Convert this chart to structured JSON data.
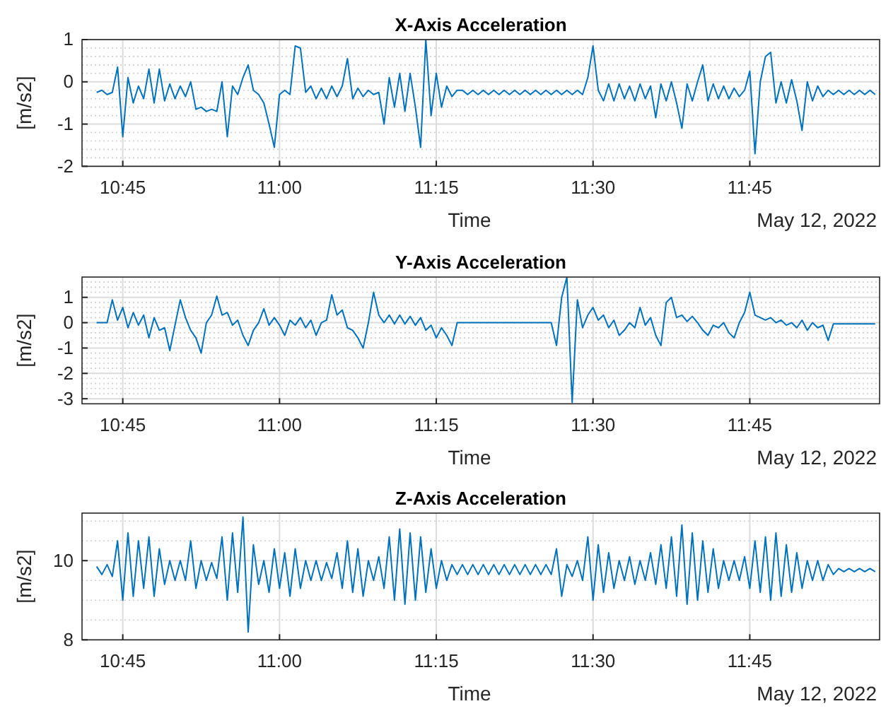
{
  "chart_data": [
    {
      "type": "line",
      "title": "X-Axis Acceleration",
      "xlabel": "Time",
      "ylabel": "[m/s2]",
      "annotations": [
        "May 12, 2022"
      ],
      "grid": true,
      "xlim": [
        10.685,
        11.957
      ],
      "xticks": [
        {
          "value": 10.75,
          "label": "10:45"
        },
        {
          "value": 11,
          "label": "11:00"
        },
        {
          "value": 11.25,
          "label": "11:15"
        },
        {
          "value": 11.5,
          "label": "11:30"
        },
        {
          "value": 11.75,
          "label": "11:45"
        }
      ],
      "ylim": [
        -2,
        1
      ],
      "yticks": [
        -2,
        {
          "value": -1.8,
          "label": null
        },
        {
          "value": -1.6,
          "label": null
        },
        {
          "value": -1.4,
          "label": null
        },
        {
          "value": -1.2,
          "label": null
        },
        -1,
        {
          "value": -0.8,
          "label": null
        },
        {
          "value": -0.6,
          "label": null
        },
        {
          "value": -0.4,
          "label": null
        },
        {
          "value": -0.2,
          "label": null
        },
        0,
        {
          "value": 0.2,
          "label": null
        },
        {
          "value": 0.4,
          "label": null
        },
        {
          "value": 0.6,
          "label": null
        },
        {
          "value": 0.8,
          "label": null
        },
        1
      ],
      "x": [
        10.7083,
        10.7167,
        10.725,
        10.7333,
        10.7417,
        10.75,
        10.7583,
        10.7667,
        10.775,
        10.7833,
        10.7917,
        10.8,
        10.8083,
        10.8167,
        10.825,
        10.8333,
        10.8417,
        10.85,
        10.8583,
        10.8667,
        10.875,
        10.8833,
        10.8917,
        10.9,
        10.9083,
        10.9167,
        10.925,
        10.9333,
        10.9417,
        10.95,
        10.9583,
        10.9667,
        10.975,
        10.9833,
        10.9917,
        11.0,
        11.0083,
        11.0167,
        11.025,
        11.0333,
        11.0417,
        11.05,
        11.0583,
        11.0667,
        11.075,
        11.0833,
        11.0917,
        11.1,
        11.1083,
        11.1167,
        11.125,
        11.1333,
        11.1417,
        11.15,
        11.1583,
        11.1667,
        11.175,
        11.1833,
        11.1917,
        11.2,
        11.2083,
        11.2167,
        11.225,
        11.2333,
        11.2417,
        11.25,
        11.2583,
        11.2667,
        11.275,
        11.2833,
        11.2917,
        11.3,
        11.3083,
        11.3167,
        11.325,
        11.3333,
        11.3417,
        11.35,
        11.3583,
        11.3667,
        11.375,
        11.3833,
        11.3917,
        11.4,
        11.4083,
        11.4167,
        11.425,
        11.4333,
        11.4417,
        11.45,
        11.4583,
        11.4667,
        11.475,
        11.4833,
        11.4917,
        11.5,
        11.5083,
        11.5167,
        11.525,
        11.5333,
        11.5417,
        11.55,
        11.5583,
        11.5667,
        11.575,
        11.5833,
        11.5917,
        11.6,
        11.6083,
        11.6167,
        11.625,
        11.6333,
        11.6417,
        11.65,
        11.6583,
        11.6667,
        11.675,
        11.6833,
        11.6917,
        11.7,
        11.7083,
        11.7167,
        11.725,
        11.7333,
        11.7417,
        11.75,
        11.7583,
        11.7667,
        11.775,
        11.7833,
        11.7917,
        11.8,
        11.8083,
        11.8167,
        11.825,
        11.8333,
        11.8417,
        11.85,
        11.8583,
        11.8667,
        11.875,
        11.8833,
        11.8917,
        11.9,
        11.9083,
        11.9167,
        11.925,
        11.9333,
        11.9417,
        11.95
      ],
      "series": [
        {
          "color": "#0072bd",
          "values": [
            -0.25,
            -0.2,
            -0.3,
            -0.25,
            0.35,
            -1.3,
            0.1,
            -0.5,
            -0.1,
            -0.4,
            0.3,
            -0.5,
            0.3,
            -0.45,
            -0.05,
            -0.4,
            -0.1,
            -0.35,
            0.0,
            -0.65,
            -0.6,
            -0.7,
            -0.65,
            -0.7,
            0.0,
            -1.3,
            -0.1,
            -0.3,
            0.1,
            0.4,
            -0.2,
            -0.3,
            -0.5,
            -1.0,
            -1.55,
            -0.3,
            -0.2,
            -0.3,
            0.85,
            0.8,
            -0.25,
            -0.1,
            -0.4,
            -0.15,
            -0.4,
            -0.1,
            -0.35,
            -0.1,
            0.55,
            -0.4,
            -0.15,
            -0.35,
            -0.2,
            -0.3,
            -0.25,
            -1.0,
            0.1,
            -0.6,
            0.2,
            -0.7,
            0.2,
            -0.6,
            -1.55,
            1.0,
            -0.8,
            0.2,
            -0.6,
            -0.1,
            -0.35,
            -0.2,
            -0.2,
            -0.3,
            -0.2,
            -0.3,
            -0.2,
            -0.3,
            -0.2,
            -0.3,
            -0.2,
            -0.3,
            -0.2,
            -0.3,
            -0.2,
            -0.3,
            -0.2,
            -0.3,
            -0.2,
            -0.3,
            -0.2,
            -0.3,
            -0.2,
            -0.3,
            -0.2,
            -0.3,
            0.1,
            0.85,
            -0.2,
            -0.45,
            -0.05,
            -0.45,
            -0.05,
            -0.4,
            -0.1,
            -0.45,
            -0.05,
            -0.4,
            -0.1,
            -0.85,
            -0.05,
            -0.45,
            0.0,
            -0.5,
            -1.1,
            -0.05,
            -0.45,
            0.0,
            0.4,
            -0.45,
            -0.05,
            -0.4,
            -0.1,
            -0.4,
            -0.15,
            -0.35,
            -0.2,
            0.25,
            -1.7,
            0.0,
            0.6,
            0.7,
            -0.5,
            0.0,
            -0.5,
            0.05,
            -0.45,
            -1.15,
            0.0,
            -0.45,
            -0.1,
            -0.35,
            -0.2,
            -0.3,
            -0.2,
            -0.3,
            -0.2,
            -0.3,
            -0.2,
            -0.3,
            -0.2,
            -0.3
          ]
        }
      ]
    },
    {
      "type": "line",
      "title": "Y-Axis Acceleration",
      "xlabel": "Time",
      "ylabel": "[m/s2]",
      "annotations": [
        "May 12, 2022"
      ],
      "grid": true,
      "xlim": [
        10.685,
        11.957
      ],
      "xticks": [
        {
          "value": 10.75,
          "label": "10:45"
        },
        {
          "value": 11,
          "label": "11:00"
        },
        {
          "value": 11.25,
          "label": "11:15"
        },
        {
          "value": 11.5,
          "label": "11:30"
        },
        {
          "value": 11.75,
          "label": "11:45"
        }
      ],
      "ylim": [
        -3.2,
        1.8
      ],
      "yticks": [
        -3,
        {
          "value": -2.8,
          "label": null
        },
        {
          "value": -2.6,
          "label": null
        },
        {
          "value": -2.4,
          "label": null
        },
        {
          "value": -2.2,
          "label": null
        },
        -2,
        {
          "value": -1.8,
          "label": null
        },
        {
          "value": -1.6,
          "label": null
        },
        {
          "value": -1.4,
          "label": null
        },
        {
          "value": -1.2,
          "label": null
        },
        -1,
        {
          "value": -0.8,
          "label": null
        },
        {
          "value": -0.6,
          "label": null
        },
        {
          "value": -0.4,
          "label": null
        },
        {
          "value": -0.2,
          "label": null
        },
        0,
        {
          "value": 0.2,
          "label": null
        },
        {
          "value": 0.4,
          "label": null
        },
        {
          "value": 0.6,
          "label": null
        },
        {
          "value": 0.8,
          "label": null
        },
        1,
        {
          "value": 1.2,
          "label": null
        },
        {
          "value": 1.4,
          "label": null
        },
        {
          "value": 1.6,
          "label": null
        }
      ],
      "x": [
        10.7083,
        10.7167,
        10.725,
        10.7333,
        10.7417,
        10.75,
        10.7583,
        10.7667,
        10.775,
        10.7833,
        10.7917,
        10.8,
        10.8083,
        10.8167,
        10.825,
        10.8333,
        10.8417,
        10.85,
        10.8583,
        10.8667,
        10.875,
        10.8833,
        10.8917,
        10.9,
        10.9083,
        10.9167,
        10.925,
        10.9333,
        10.9417,
        10.95,
        10.9583,
        10.9667,
        10.975,
        10.9833,
        10.9917,
        11.0,
        11.0083,
        11.0167,
        11.025,
        11.0333,
        11.0417,
        11.05,
        11.0583,
        11.0667,
        11.075,
        11.0833,
        11.0917,
        11.1,
        11.1083,
        11.1167,
        11.125,
        11.1333,
        11.1417,
        11.15,
        11.1583,
        11.1667,
        11.175,
        11.1833,
        11.1917,
        11.2,
        11.2083,
        11.2167,
        11.225,
        11.2333,
        11.2417,
        11.25,
        11.2583,
        11.2667,
        11.275,
        11.2833,
        11.2917,
        11.3,
        11.3083,
        11.3167,
        11.325,
        11.3333,
        11.3417,
        11.35,
        11.3583,
        11.3667,
        11.375,
        11.3833,
        11.3917,
        11.4,
        11.4083,
        11.4167,
        11.425,
        11.4333,
        11.4417,
        11.45,
        11.4583,
        11.4667,
        11.475,
        11.4833,
        11.4917,
        11.5,
        11.5083,
        11.5167,
        11.525,
        11.5333,
        11.5417,
        11.55,
        11.5583,
        11.5667,
        11.575,
        11.5833,
        11.5917,
        11.6,
        11.6083,
        11.6167,
        11.625,
        11.6333,
        11.6417,
        11.65,
        11.6583,
        11.6667,
        11.675,
        11.6833,
        11.6917,
        11.7,
        11.7083,
        11.7167,
        11.725,
        11.7333,
        11.7417,
        11.75,
        11.7583,
        11.7667,
        11.775,
        11.7833,
        11.7917,
        11.8,
        11.8083,
        11.8167,
        11.825,
        11.8333,
        11.8417,
        11.85,
        11.8583,
        11.8667,
        11.875,
        11.8833,
        11.8917,
        11.9,
        11.9083,
        11.9167,
        11.925,
        11.9333,
        11.9417,
        11.95
      ],
      "series": [
        {
          "color": "#0072bd",
          "values": [
            0,
            0,
            0,
            0.9,
            0.1,
            0.6,
            -0.2,
            0.4,
            -0.1,
            0.3,
            -0.6,
            0.2,
            -0.3,
            -0.2,
            -1.1,
            -0.1,
            0.9,
            0.2,
            -0.3,
            -0.6,
            -1.2,
            0.0,
            0.3,
            1.05,
            0.3,
            0.4,
            -0.1,
            0.1,
            -0.5,
            -0.9,
            -0.3,
            0.0,
            0.55,
            -0.1,
            0.2,
            -0.1,
            -0.5,
            0.1,
            -0.1,
            0.2,
            -0.2,
            0.1,
            -0.5,
            0.0,
            0.1,
            1.1,
            0.3,
            0.5,
            -0.2,
            -0.3,
            -0.6,
            -1.0,
            0.0,
            1.2,
            0.3,
            0.0,
            0.3,
            -0.05,
            0.3,
            -0.05,
            0.25,
            -0.1,
            0.2,
            -0.3,
            -0.1,
            -0.6,
            -0.2,
            -0.5,
            -0.9,
            0.0,
            0,
            0,
            0,
            0,
            0,
            0,
            0,
            0,
            0,
            0,
            0,
            0,
            0,
            0,
            0,
            0,
            0,
            0,
            -0.9,
            1.0,
            1.8,
            -3.15,
            0.9,
            -0.2,
            0.3,
            0.6,
            0.1,
            0.3,
            -0.2,
            0.1,
            -0.5,
            -0.3,
            0.0,
            -0.2,
            0.6,
            -0.1,
            0.2,
            -0.5,
            -0.9,
            0.8,
            1.0,
            0.2,
            0.3,
            0.05,
            0.25,
            0.0,
            -0.3,
            -0.5,
            -0.1,
            -0.2,
            0.0,
            -0.4,
            -0.6,
            0.0,
            0.4,
            1.2,
            0.3,
            0.2,
            0.1,
            0.2,
            0.0,
            0.1,
            -0.1,
            0.0,
            -0.2,
            0.1,
            -0.3,
            0.0,
            -0.2,
            -0.1,
            -0.7,
            -0.05,
            -0.05,
            -0.05,
            -0.05,
            -0.05,
            -0.05,
            -0.05,
            -0.05,
            -0.05
          ]
        }
      ]
    },
    {
      "type": "line",
      "title": "Z-Axis Acceleration",
      "xlabel": "Time",
      "ylabel": "[m/s2]",
      "annotations": [
        "May 12, 2022"
      ],
      "grid": true,
      "xlim": [
        10.685,
        11.957
      ],
      "xticks": [
        {
          "value": 10.75,
          "label": "10:45"
        },
        {
          "value": 11,
          "label": "11:00"
        },
        {
          "value": 11.25,
          "label": "11:15"
        },
        {
          "value": 11.5,
          "label": "11:30"
        },
        {
          "value": 11.75,
          "label": "11:45"
        }
      ],
      "ylim": [
        8,
        11.2
      ],
      "yticks": [
        8,
        {
          "value": 8.5,
          "label": null
        },
        {
          "value": 9,
          "label": null
        },
        {
          "value": 9.5,
          "label": null
        },
        10,
        {
          "value": 10.5,
          "label": null
        },
        {
          "value": 11,
          "label": null
        }
      ],
      "x": [
        10.7083,
        10.7167,
        10.725,
        10.7333,
        10.7417,
        10.75,
        10.7583,
        10.7667,
        10.775,
        10.7833,
        10.7917,
        10.8,
        10.8083,
        10.8167,
        10.825,
        10.8333,
        10.8417,
        10.85,
        10.8583,
        10.8667,
        10.875,
        10.8833,
        10.8917,
        10.9,
        10.9083,
        10.9167,
        10.925,
        10.9333,
        10.9417,
        10.95,
        10.9583,
        10.9667,
        10.975,
        10.9833,
        10.9917,
        11.0,
        11.0083,
        11.0167,
        11.025,
        11.0333,
        11.0417,
        11.05,
        11.0583,
        11.0667,
        11.075,
        11.0833,
        11.0917,
        11.1,
        11.1083,
        11.1167,
        11.125,
        11.1333,
        11.1417,
        11.15,
        11.1583,
        11.1667,
        11.175,
        11.1833,
        11.1917,
        11.2,
        11.2083,
        11.2167,
        11.225,
        11.2333,
        11.2417,
        11.25,
        11.2583,
        11.2667,
        11.275,
        11.2833,
        11.2917,
        11.3,
        11.3083,
        11.3167,
        11.325,
        11.3333,
        11.3417,
        11.35,
        11.3583,
        11.3667,
        11.375,
        11.3833,
        11.3917,
        11.4,
        11.4083,
        11.4167,
        11.425,
        11.4333,
        11.4417,
        11.45,
        11.4583,
        11.4667,
        11.475,
        11.4833,
        11.4917,
        11.5,
        11.5083,
        11.5167,
        11.525,
        11.5333,
        11.5417,
        11.55,
        11.5583,
        11.5667,
        11.575,
        11.5833,
        11.5917,
        11.6,
        11.6083,
        11.6167,
        11.625,
        11.6333,
        11.6417,
        11.65,
        11.6583,
        11.6667,
        11.675,
        11.6833,
        11.6917,
        11.7,
        11.7083,
        11.7167,
        11.725,
        11.7333,
        11.7417,
        11.75,
        11.7583,
        11.7667,
        11.775,
        11.7833,
        11.7917,
        11.8,
        11.8083,
        11.8167,
        11.825,
        11.8333,
        11.8417,
        11.85,
        11.8583,
        11.8667,
        11.875,
        11.8833,
        11.8917,
        11.9,
        11.9083,
        11.9167,
        11.925,
        11.9333,
        11.9417,
        11.95
      ],
      "series": [
        {
          "color": "#0072bd",
          "values": [
            9.85,
            9.65,
            9.9,
            9.6,
            10.5,
            9.0,
            10.7,
            9.1,
            10.5,
            9.3,
            10.6,
            9.1,
            10.3,
            9.4,
            10.0,
            9.5,
            10.0,
            9.5,
            10.5,
            9.3,
            10.0,
            9.5,
            9.95,
            9.55,
            10.6,
            9.0,
            10.7,
            9.2,
            11.1,
            8.2,
            10.4,
            9.4,
            10.0,
            9.2,
            10.3,
            9.3,
            10.2,
            9.1,
            10.3,
            9.3,
            10.0,
            9.5,
            10.0,
            9.5,
            9.95,
            9.55,
            10.2,
            9.3,
            10.5,
            9.2,
            10.3,
            9.1,
            10.0,
            9.5,
            10.1,
            9.3,
            10.6,
            9.0,
            10.8,
            8.9,
            10.7,
            9.0,
            10.6,
            9.2,
            10.3,
            9.3,
            10.0,
            9.5,
            9.9,
            9.65,
            9.9,
            9.65,
            9.9,
            9.65,
            9.9,
            9.65,
            9.9,
            9.65,
            9.9,
            9.65,
            9.9,
            9.65,
            9.9,
            9.65,
            9.9,
            9.65,
            9.9,
            9.65,
            10.3,
            9.1,
            9.9,
            9.6,
            10.0,
            9.5,
            10.6,
            9.0,
            10.4,
            9.2,
            10.2,
            9.3,
            10.0,
            9.5,
            10.1,
            9.4,
            10.0,
            9.5,
            10.2,
            9.4,
            10.4,
            9.3,
            10.6,
            9.1,
            10.9,
            8.9,
            10.7,
            9.0,
            10.5,
            9.2,
            10.3,
            9.3,
            10.0,
            9.5,
            10.0,
            9.5,
            10.1,
            9.3,
            10.5,
            9.2,
            10.6,
            9.0,
            10.7,
            9.1,
            10.4,
            9.2,
            10.2,
            9.3,
            10.0,
            9.5,
            10.0,
            9.5,
            9.9,
            9.65,
            9.8,
            9.72,
            9.8,
            9.72,
            9.8,
            9.72,
            9.8,
            9.72
          ]
        }
      ]
    }
  ]
}
